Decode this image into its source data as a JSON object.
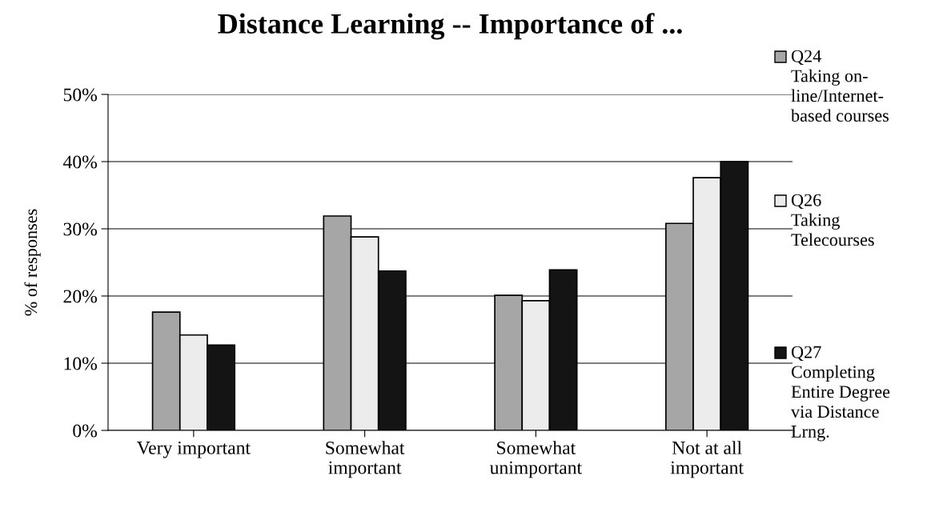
{
  "chart_data": {
    "type": "bar",
    "title": "Distance Learning -- Importance of ...",
    "ylabel": "% of responses",
    "categories": [
      "Very important",
      "Somewhat\nimportant",
      "Somewhat\nunimportant",
      "Not at all\nimportant"
    ],
    "series": [
      {
        "name": "Q24\nTaking on-\nline/Internet-\nbased courses",
        "color": "#a6a6a6",
        "values": [
          17.6,
          31.9,
          20.1,
          30.8
        ]
      },
      {
        "name": "Q26\nTaking\nTelecourses",
        "color": "#ececec",
        "values": [
          14.2,
          28.8,
          19.3,
          37.6
        ]
      },
      {
        "name": "Q27\nCompleting\nEntire Degree\nvia Distance\nLrng.",
        "color": "#141414",
        "values": [
          12.7,
          23.7,
          23.9,
          40.0
        ]
      }
    ],
    "ylim": [
      0,
      50
    ],
    "yticks": [
      {
        "value": 0,
        "label": "0%"
      },
      {
        "value": 10,
        "label": "10%"
      },
      {
        "value": 20,
        "label": "20%"
      },
      {
        "value": 30,
        "label": "30%"
      },
      {
        "value": 40,
        "label": "40%"
      },
      {
        "value": 50,
        "label": "50%"
      }
    ],
    "grid": "y",
    "legend": "right"
  }
}
